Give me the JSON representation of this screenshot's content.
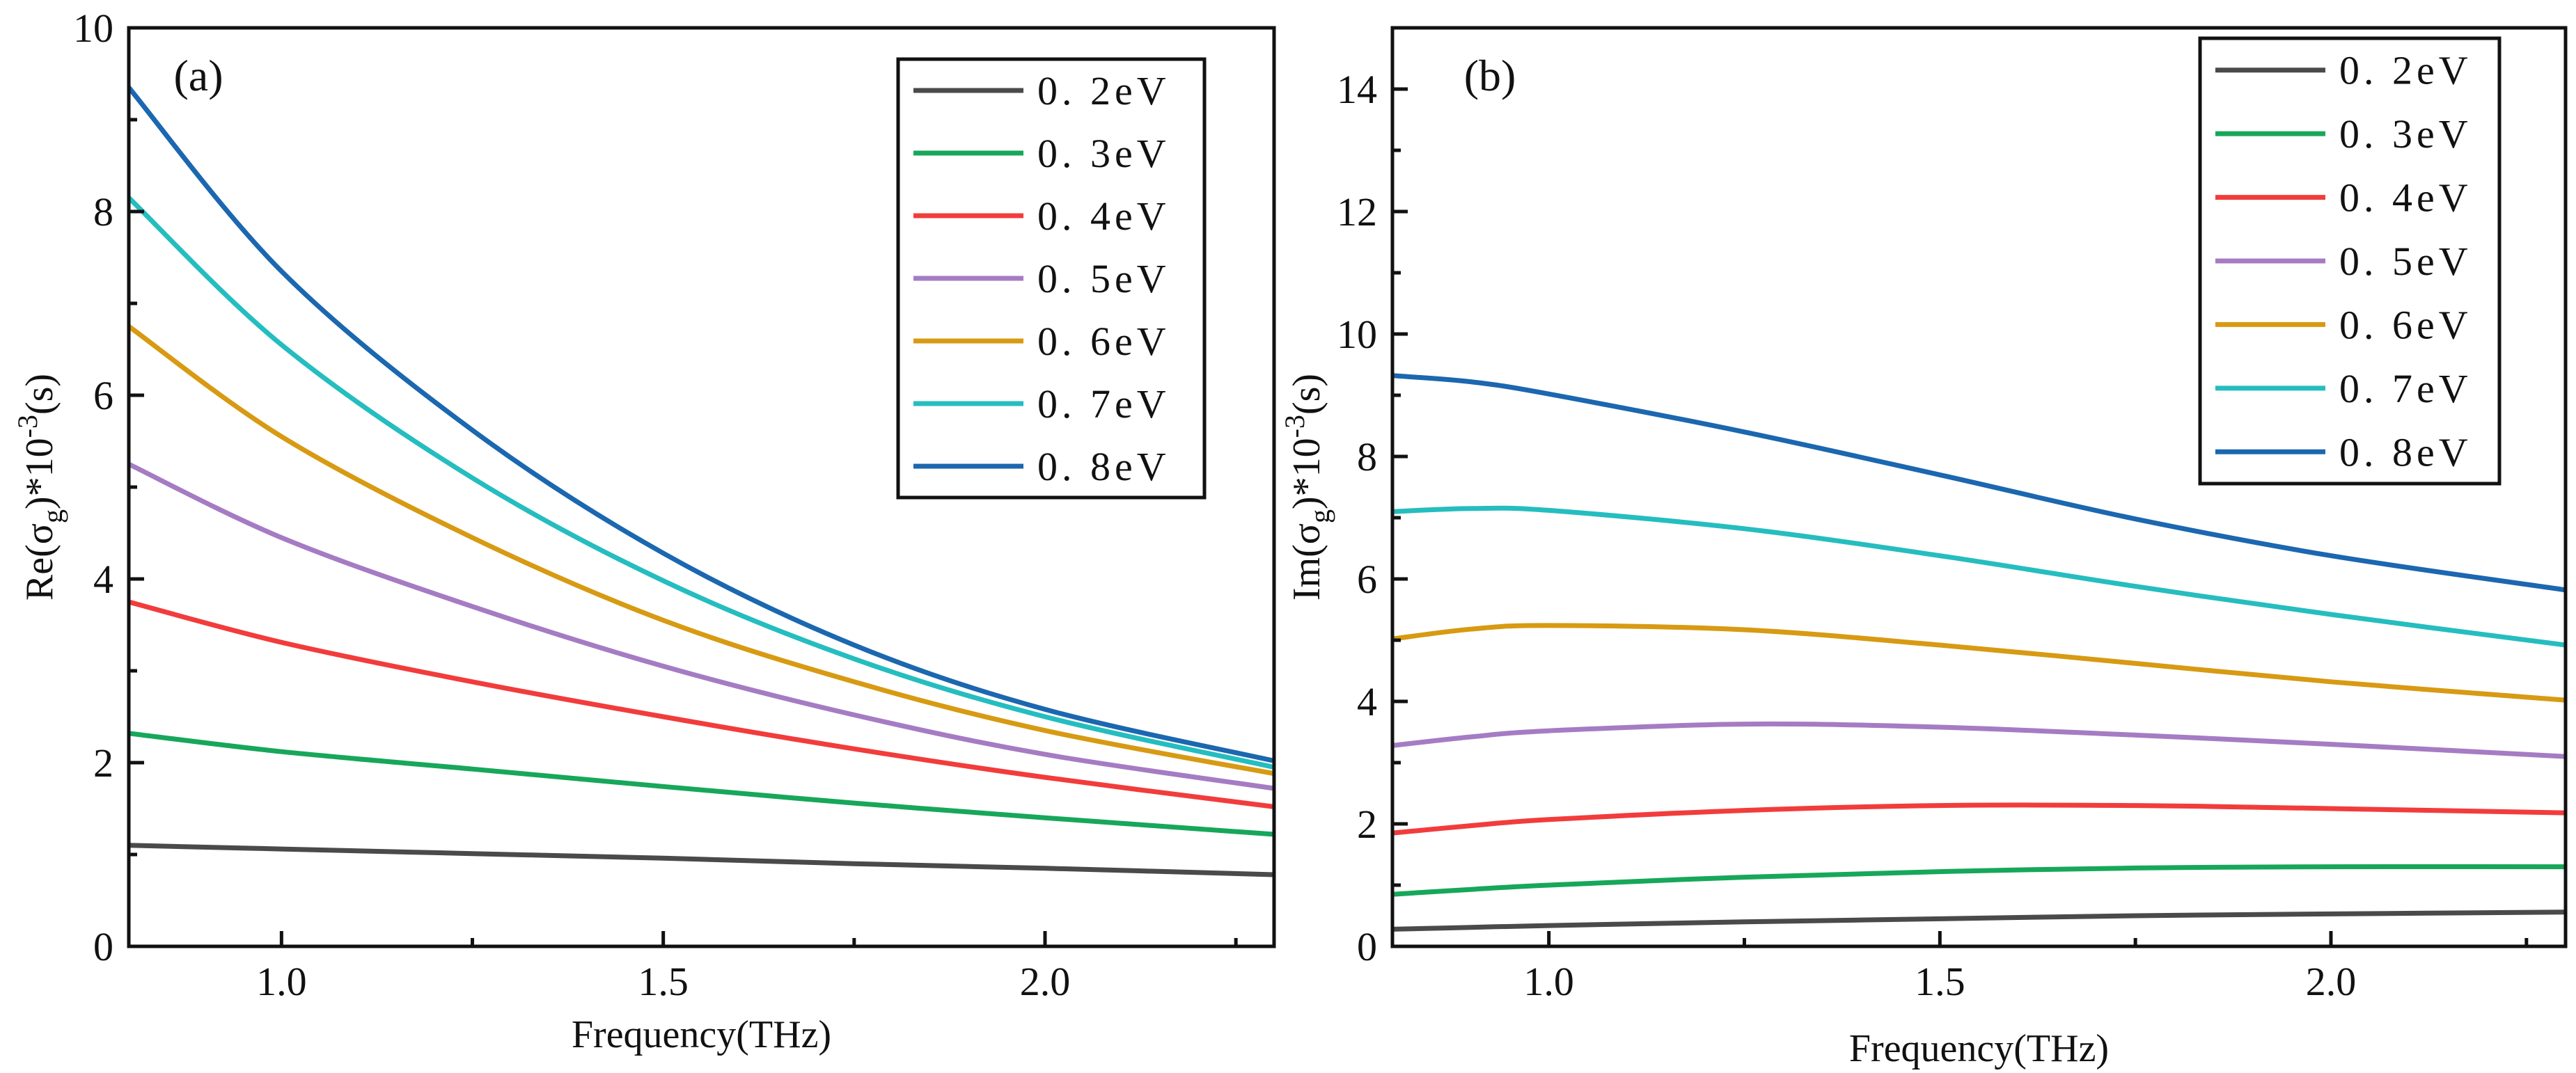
{
  "colors": {
    "0.2eV": "#4a4a4a",
    "0.3eV": "#17a75a",
    "0.4eV": "#f23c3c",
    "0.5eV": "#a57cc3",
    "0.6eV": "#d79a12",
    "0.7eV": "#25bdbf",
    "0.8eV": "#1b67b0"
  },
  "chart_data": [
    {
      "panel": "(a)",
      "type": "line",
      "title": "",
      "xlabel": "Frequency(THz)",
      "ylabel": {
        "pre": "Re(σ",
        "sub": "g",
        "mid": ")*10",
        "sup": "-3",
        "post": "(s)"
      },
      "xlim": [
        0.8,
        2.3
      ],
      "ylim": [
        0,
        10
      ],
      "xticks": [
        1.0,
        1.5,
        2.0
      ],
      "xtick_labels": [
        "1.0",
        "1.5",
        "2.0"
      ],
      "yticks": [
        0,
        2,
        4,
        6,
        8,
        10
      ],
      "ytick_labels": [
        "0",
        "2",
        "4",
        "6",
        "8",
        "10"
      ],
      "legend": [
        "0. 2eV",
        "0. 3eV",
        "0. 4eV",
        "0. 5eV",
        "0. 6eV",
        "0. 7eV",
        "0. 8eV"
      ],
      "legend_position": "top-right",
      "x": [
        0.8,
        1.0,
        1.25,
        1.5,
        1.75,
        2.0,
        2.3
      ],
      "series": [
        {
          "name": "0. 2eV",
          "key": "0.2eV",
          "values": [
            1.1,
            1.06,
            1.01,
            0.96,
            0.9,
            0.85,
            0.78
          ]
        },
        {
          "name": "0. 3eV",
          "key": "0.3eV",
          "values": [
            2.32,
            2.12,
            1.93,
            1.74,
            1.56,
            1.4,
            1.22
          ]
        },
        {
          "name": "0. 4eV",
          "key": "0.4eV",
          "values": [
            3.75,
            3.31,
            2.88,
            2.5,
            2.15,
            1.84,
            1.52
          ]
        },
        {
          "name": "0. 5eV",
          "key": "0.5eV",
          "values": [
            5.25,
            4.45,
            3.7,
            3.05,
            2.52,
            2.09,
            1.72
          ]
        },
        {
          "name": "0. 6eV",
          "key": "0.6eV",
          "values": [
            6.75,
            5.55,
            4.45,
            3.55,
            2.88,
            2.35,
            1.88
          ]
        },
        {
          "name": "0. 7eV",
          "key": "0.7eV",
          "values": [
            8.15,
            6.55,
            5.1,
            3.98,
            3.13,
            2.5,
            1.95
          ]
        },
        {
          "name": "0. 8eV",
          "key": "0.8eV",
          "values": [
            9.35,
            7.35,
            5.62,
            4.28,
            3.28,
            2.58,
            2.02
          ]
        }
      ]
    },
    {
      "panel": "(b)",
      "type": "line",
      "title": "",
      "xlabel": "Frequency(THz)",
      "ylabel": {
        "pre": "Im(σ",
        "sub": "g",
        "mid": ")*10",
        "sup": "-3",
        "post": "(s)"
      },
      "xlim": [
        0.8,
        2.3
      ],
      "ylim": [
        0,
        15
      ],
      "xticks": [
        1.0,
        1.5,
        2.0
      ],
      "xtick_labels": [
        "1.0",
        "1.5",
        "2.0"
      ],
      "yticks": [
        0,
        2,
        4,
        6,
        8,
        10,
        12,
        14
      ],
      "ytick_labels": [
        "0",
        "2",
        "4",
        "6",
        "8",
        "10",
        "12",
        "14"
      ],
      "legend": [
        "0. 2eV",
        "0. 3eV",
        "0. 4eV",
        "0. 5eV",
        "0. 6eV",
        "0. 7eV",
        "0. 8eV"
      ],
      "legend_position": "top-right",
      "x": [
        0.8,
        0.9,
        1.0,
        1.25,
        1.5,
        1.75,
        2.0,
        2.3
      ],
      "series": [
        {
          "name": "0. 2eV",
          "key": "0.2eV",
          "values": [
            0.28,
            0.31,
            0.34,
            0.4,
            0.45,
            0.5,
            0.53,
            0.56
          ]
        },
        {
          "name": "0. 3eV",
          "key": "0.3eV",
          "values": [
            0.85,
            0.93,
            1.0,
            1.13,
            1.22,
            1.28,
            1.3,
            1.3
          ]
        },
        {
          "name": "0. 4eV",
          "key": "0.4eV",
          "values": [
            1.85,
            1.97,
            2.07,
            2.22,
            2.3,
            2.3,
            2.25,
            2.18
          ]
        },
        {
          "name": "0. 5eV",
          "key": "0.5eV",
          "values": [
            3.28,
            3.42,
            3.52,
            3.63,
            3.58,
            3.45,
            3.3,
            3.1
          ]
        },
        {
          "name": "0. 6eV",
          "key": "0.6eV",
          "values": [
            5.02,
            5.18,
            5.24,
            5.17,
            4.92,
            4.62,
            4.32,
            4.02
          ]
        },
        {
          "name": "0. 7eV",
          "key": "0.7eV",
          "values": [
            7.1,
            7.15,
            7.12,
            6.82,
            6.38,
            5.88,
            5.42,
            4.92
          ]
        },
        {
          "name": "0. 8eV",
          "key": "0.8eV",
          "values": [
            9.32,
            9.22,
            9.02,
            8.4,
            7.7,
            6.98,
            6.38,
            5.82
          ]
        }
      ]
    }
  ]
}
